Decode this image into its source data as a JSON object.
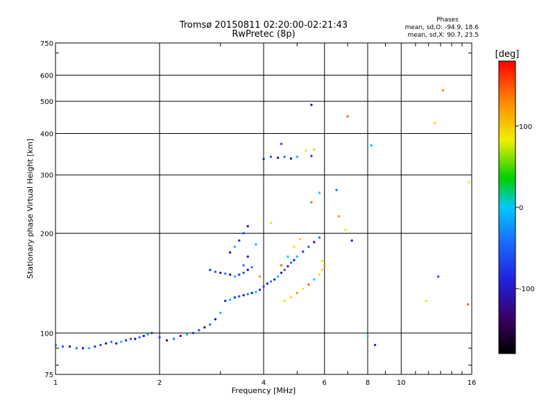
{
  "chart_data": {
    "type": "scatter",
    "title": "Tromsø 20150811 02:20:00-02:21:43",
    "subtitle": "RwPretec (8p)",
    "xlabel": "Frequency [MHz]",
    "ylabel": "Stationary phase Virtual Height [km]",
    "x_scale": "log",
    "y_scale": "log",
    "xlim": [
      1,
      16
    ],
    "ylim": [
      75,
      750
    ],
    "xticks": [
      1,
      2,
      4,
      6,
      8,
      10,
      16
    ],
    "yticks": [
      75,
      100,
      200,
      300,
      400,
      500,
      600,
      750
    ],
    "grid": true,
    "stats": {
      "heading": "Phases",
      "line_o": "mean, sd,O: -94.9, 18.6",
      "line_x": "mean, sd,X:  90.7, 23.5"
    },
    "colorbar": {
      "label": "[deg]",
      "range": [
        -180,
        180
      ],
      "ticks": [
        100,
        0,
        -100
      ],
      "palette": "rainbow",
      "colors": [
        "#000000",
        "#3a0060",
        "#2020e0",
        "#00c0ff",
        "#00d000",
        "#f0f000",
        "#ff8000",
        "#ff0000"
      ]
    },
    "series": [
      {
        "name": "O",
        "points": [
          [
            1.0,
            92
          ],
          [
            1.05,
            91
          ],
          [
            1.1,
            91
          ],
          [
            1.15,
            90
          ],
          [
            1.2,
            90
          ],
          [
            1.25,
            90
          ],
          [
            1.3,
            91
          ],
          [
            1.35,
            92
          ],
          [
            1.4,
            93
          ],
          [
            1.45,
            94
          ],
          [
            1.5,
            93
          ],
          [
            1.55,
            94
          ],
          [
            1.6,
            95
          ],
          [
            1.65,
            96
          ],
          [
            1.7,
            96
          ],
          [
            1.75,
            97
          ],
          [
            1.8,
            98
          ],
          [
            1.85,
            99
          ],
          [
            1.9,
            100
          ],
          [
            2.0,
            97
          ],
          [
            2.1,
            95
          ],
          [
            2.2,
            96
          ],
          [
            2.3,
            98
          ],
          [
            2.4,
            99
          ],
          [
            2.5,
            100
          ],
          [
            2.6,
            102
          ],
          [
            2.7,
            104
          ],
          [
            2.8,
            106
          ],
          [
            2.9,
            110
          ],
          [
            3.0,
            115
          ],
          [
            2.8,
            155
          ],
          [
            2.9,
            153
          ],
          [
            3.0,
            152
          ],
          [
            3.1,
            151
          ],
          [
            3.2,
            150
          ],
          [
            3.3,
            148
          ],
          [
            3.4,
            150
          ],
          [
            3.5,
            152
          ],
          [
            3.6,
            155
          ],
          [
            3.7,
            158
          ],
          [
            3.1,
            125
          ],
          [
            3.2,
            126
          ],
          [
            3.3,
            128
          ],
          [
            3.4,
            129
          ],
          [
            3.5,
            130
          ],
          [
            3.6,
            131
          ],
          [
            3.7,
            132
          ],
          [
            3.8,
            133
          ],
          [
            3.9,
            135
          ],
          [
            4.0,
            138
          ],
          [
            4.1,
            141
          ],
          [
            4.2,
            143
          ],
          [
            4.3,
            145
          ],
          [
            4.4,
            148
          ],
          [
            4.5,
            152
          ],
          [
            4.6,
            155
          ],
          [
            4.7,
            159
          ],
          [
            4.8,
            163
          ],
          [
            4.9,
            166
          ],
          [
            5.0,
            170
          ],
          [
            5.2,
            176
          ],
          [
            5.4,
            182
          ],
          [
            5.6,
            188
          ],
          [
            5.8,
            194
          ],
          [
            3.2,
            175
          ],
          [
            3.3,
            182
          ],
          [
            3.4,
            190
          ],
          [
            3.5,
            200
          ],
          [
            3.6,
            210
          ],
          [
            3.5,
            160
          ],
          [
            3.6,
            170
          ],
          [
            3.8,
            185
          ],
          [
            4.0,
            335
          ],
          [
            4.2,
            340
          ],
          [
            4.4,
            338
          ],
          [
            4.6,
            340
          ],
          [
            4.8,
            336
          ],
          [
            5.0,
            340
          ],
          [
            5.5,
            342
          ],
          [
            4.5,
            372
          ],
          [
            5.5,
            488
          ],
          [
            6.5,
            270
          ],
          [
            7.2,
            190
          ],
          [
            8.2,
            368
          ],
          [
            8.4,
            92
          ],
          [
            12.8,
            148
          ]
        ]
      },
      {
        "name": "X",
        "points": [
          [
            4.6,
            125
          ],
          [
            4.8,
            128
          ],
          [
            5.0,
            132
          ],
          [
            5.2,
            136
          ],
          [
            5.4,
            140
          ],
          [
            5.6,
            145
          ],
          [
            5.8,
            150
          ],
          [
            5.9,
            155
          ],
          [
            6.0,
            160
          ],
          [
            5.9,
            165
          ],
          [
            4.5,
            160
          ],
          [
            4.7,
            170
          ],
          [
            4.9,
            182
          ],
          [
            5.1,
            192
          ],
          [
            3.9,
            148
          ],
          [
            4.2,
            215
          ],
          [
            5.5,
            248
          ],
          [
            5.8,
            265
          ],
          [
            5.3,
            355
          ],
          [
            5.6,
            358
          ],
          [
            6.6,
            225
          ],
          [
            6.9,
            205
          ],
          [
            7.0,
            450
          ],
          [
            8.0,
            98
          ],
          [
            11.8,
            125
          ],
          [
            12.5,
            430
          ],
          [
            13.2,
            540
          ],
          [
            15.7,
            285
          ],
          [
            15.6,
            122
          ]
        ]
      }
    ]
  }
}
